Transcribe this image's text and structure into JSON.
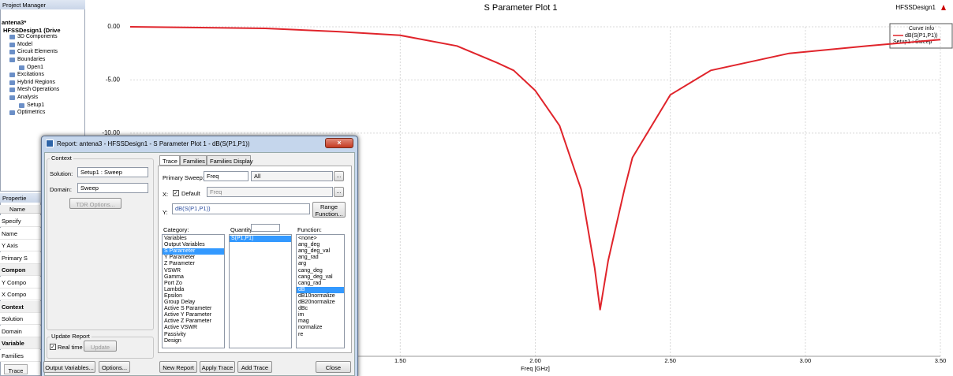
{
  "project_manager": {
    "title": "Project Manager",
    "tree": [
      "antena3*",
      "HFSSDesign1 (Drive",
      "3D Components",
      "Model",
      "Circuit Elements",
      "Boundaries",
      "Open1",
      "Excitations",
      "Hybrid Regions",
      "Mesh Operations",
      "Analysis",
      "Setup1",
      "Optimetrics"
    ]
  },
  "properties": {
    "title": "Propertie",
    "header": "Name",
    "rows": [
      "Specify",
      "Name",
      "Y Axis",
      "Primary S",
      "Compon",
      "Y Compo",
      "X Compo",
      "Context",
      "Solution",
      "Domain",
      "Variable",
      "Families"
    ]
  },
  "bottom_tab": "Trace",
  "chart_data": {
    "type": "line",
    "title": "S Parameter Plot 1",
    "design": "HFSSDesign1",
    "xlabel": "Freq [GHz]",
    "legend_title": "Curve Info",
    "legend_subtitle": "Setup1 : Sweep",
    "x": [
      0.5,
      1.0,
      1.27,
      1.5,
      1.71,
      1.86,
      1.92,
      2.0,
      2.09,
      2.17,
      2.22,
      2.24,
      2.27,
      2.33,
      2.36,
      2.5,
      2.65,
      2.94,
      3.23,
      3.5
    ],
    "series": [
      {
        "name": "dB(S(P1,P1))",
        "color": "#e0242b",
        "values": [
          0,
          -0.15,
          -0.45,
          -0.8,
          -1.8,
          -3.4,
          -4.1,
          -6.0,
          -9.3,
          -15.3,
          -22.7,
          -26.6,
          -22.0,
          -15.3,
          -12.3,
          -6.4,
          -4.1,
          -2.5,
          -1.8,
          -1.2
        ]
      }
    ],
    "xlim": [
      0.5,
      3.5
    ],
    "ylim": [
      -31,
      0
    ],
    "xticks": [
      {
        "value": 1.5,
        "label": "1.50"
      },
      {
        "value": 2.0,
        "label": "2.00"
      },
      {
        "value": 2.5,
        "label": "2.50"
      },
      {
        "value": 3.0,
        "label": "3.00"
      },
      {
        "value": 3.5,
        "label": "3.50"
      }
    ],
    "yticks": [
      {
        "value": 0,
        "label": "0.00"
      },
      {
        "value": -5,
        "label": "-5.00"
      },
      {
        "value": -10,
        "label": "-10.00"
      }
    ],
    "grid": true
  },
  "dialog": {
    "title": "Report: antena3 - HFSSDesign1 - S Parameter Plot 1 - dB(S(P1,P1))",
    "context": {
      "label": "Context",
      "solution_label": "Solution:",
      "solution": "Setup1 : Sweep",
      "domain_label": "Domain:",
      "domain": "Sweep",
      "tdr_button": "TDR Options..."
    },
    "tabs": [
      "Trace",
      "Families",
      "Families Display"
    ],
    "primary_sweep_label": "Primary Sweep:",
    "primary_sweep": "Freq",
    "sweep_values": "All",
    "browse": "...",
    "x_label": "X:",
    "x_default": "Default",
    "x_value": "Freq",
    "y_label": "Y:",
    "y_value": "dB(S(P1,P1))",
    "range_function": [
      "Range",
      "Function..."
    ],
    "category": {
      "label": "Category:",
      "selected": 2,
      "items": [
        "Variables",
        "Output Variables",
        "S Parameter",
        "Y Parameter",
        "Z Parameter",
        "VSWR",
        "Gamma",
        "Port Zo",
        "Lambda",
        "Epsilon",
        "Group Delay",
        "Active S Parameter",
        "Active Y Parameter",
        "Active Z Parameter",
        "Active VSWR",
        "Passivity",
        "Design"
      ]
    },
    "quantity": {
      "label": "Quantity:",
      "selected": 0,
      "items": [
        "S(P1,P1)"
      ]
    },
    "function": {
      "label": "Function:",
      "selected": 8,
      "items": [
        "<none>",
        "ang_deg",
        "ang_deg_val",
        "ang_rad",
        "arg",
        "cang_deg",
        "cang_deg_val",
        "cang_rad",
        "dB",
        "dB10normalize",
        "dB20normalize",
        "dBc",
        "im",
        "mag",
        "normalize",
        "re"
      ]
    },
    "update_report": {
      "label": "Update Report",
      "real_time": "Real time",
      "update": "Update"
    },
    "buttons": [
      "Output Variables...",
      "Options...",
      "New Report",
      "Apply Trace",
      "Add Trace",
      "Close"
    ]
  }
}
